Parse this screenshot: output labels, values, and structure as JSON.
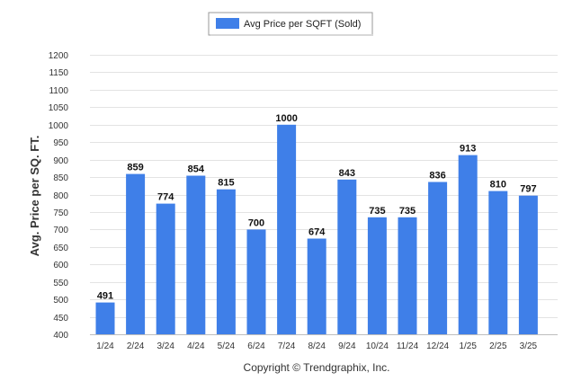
{
  "chart_data": {
    "type": "bar",
    "categories": [
      "1/24",
      "2/24",
      "3/24",
      "4/24",
      "5/24",
      "6/24",
      "7/24",
      "8/24",
      "9/24",
      "10/24",
      "11/24",
      "12/24",
      "1/25",
      "2/25",
      "3/25"
    ],
    "series": [
      {
        "name": "Avg Price per SQFT (Sold)",
        "values": [
          491,
          859,
          774,
          854,
          815,
          700,
          1000,
          674,
          843,
          735,
          735,
          836,
          913,
          810,
          797
        ],
        "color": "#3f7fe8"
      }
    ],
    "ylabel": "Avg. Price per SQ. FT.",
    "xlabel": "",
    "ylim": [
      400,
      1200
    ],
    "yticks": [
      400,
      450,
      500,
      550,
      600,
      650,
      700,
      750,
      800,
      850,
      900,
      950,
      1000,
      1050,
      1100,
      1150,
      1200
    ],
    "grid": true,
    "legend_position": "top-center",
    "data_labels": true
  },
  "footer": {
    "copyright": "Copyright © Trendgraphix, Inc."
  }
}
